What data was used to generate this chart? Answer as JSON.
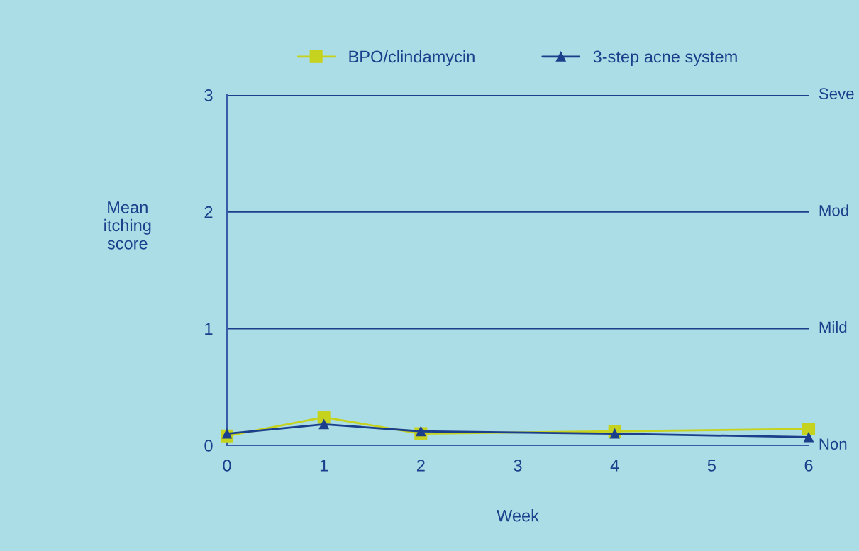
{
  "chart_data": {
    "type": "line",
    "xlabel": "Week",
    "ylabel": "Mean\nitching\nscore",
    "x": [
      0,
      1,
      2,
      4,
      6
    ],
    "series": [
      {
        "name": "BPO/clindamycin",
        "color": "#c5d21e",
        "marker": "square",
        "values": [
          0.08,
          0.24,
          0.1,
          0.12,
          0.14
        ]
      },
      {
        "name": "3-step acne system",
        "color": "#1c3f8c",
        "marker": "triangle",
        "values": [
          0.1,
          0.18,
          0.12,
          0.1,
          0.07
        ]
      }
    ],
    "xlim": [
      0,
      6
    ],
    "xticks": [
      0,
      1,
      2,
      3,
      4,
      5,
      6
    ],
    "ylim": [
      0,
      3
    ],
    "yticks": [
      0,
      1,
      2,
      3
    ],
    "annotations": [
      "Seve",
      "Mod",
      "Mild",
      "Non"
    ],
    "grid": "y",
    "legend": "top",
    "line_style": "solid"
  }
}
